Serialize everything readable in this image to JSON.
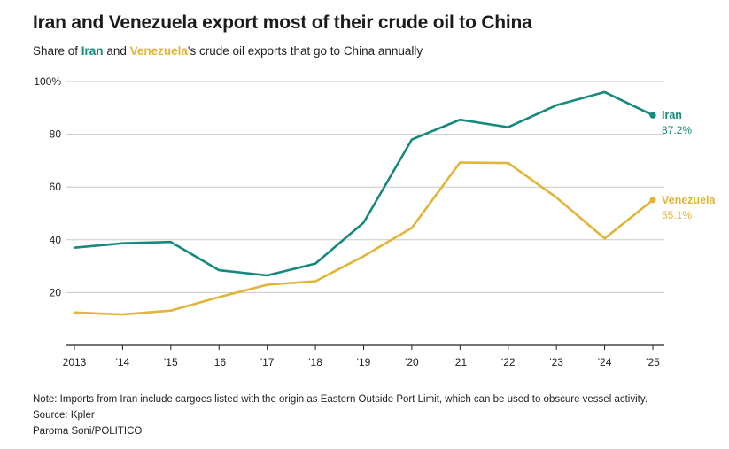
{
  "title": "Iran and Venezuela export most of their crude oil to China",
  "subtitle": {
    "prefix": "Share of ",
    "iran": "Iran",
    "and": " and ",
    "venezuela": "Venezuela",
    "suffix": "'s crude oil exports that go to China annually"
  },
  "footer": {
    "note": "Note: Imports from Iran include cargoes listed with the origin as Eastern Outside Port Limit, which can be used to obscure vessel activity.",
    "source": "Source: Kpler",
    "credit": "Paroma Soni/POLITICO"
  },
  "chart_data": {
    "type": "line",
    "title": "Iran and Venezuela export most of their crude oil to China",
    "xlabel": "",
    "ylabel": "",
    "categories": [
      "2013",
      "'14",
      "'15",
      "'16",
      "'17",
      "'18",
      "'19",
      "'20",
      "'21",
      "'22",
      "'23",
      "'24",
      "'25"
    ],
    "ylim": [
      0,
      100
    ],
    "yticks": [
      {
        "value": 20,
        "label": "20"
      },
      {
        "value": 40,
        "label": "40"
      },
      {
        "value": 60,
        "label": "60"
      },
      {
        "value": 80,
        "label": "80"
      },
      {
        "value": 100,
        "label": "100%"
      }
    ],
    "series": [
      {
        "name": "Iran",
        "color": "#14897c",
        "values": [
          37,
          38.7,
          39.2,
          28.5,
          26.5,
          31,
          46.5,
          78,
          85.5,
          82.7,
          91,
          96,
          87.2
        ],
        "end_label": "87.2%"
      },
      {
        "name": "Venezuela",
        "color": "#e1b53a",
        "values": [
          12.5,
          11.7,
          13.2,
          18.3,
          23,
          24.3,
          33.8,
          44.5,
          69.3,
          69.1,
          56,
          40.5,
          55.1
        ],
        "end_label": "55.1%"
      }
    ],
    "grid": true,
    "legend": "direct-labels-right"
  }
}
